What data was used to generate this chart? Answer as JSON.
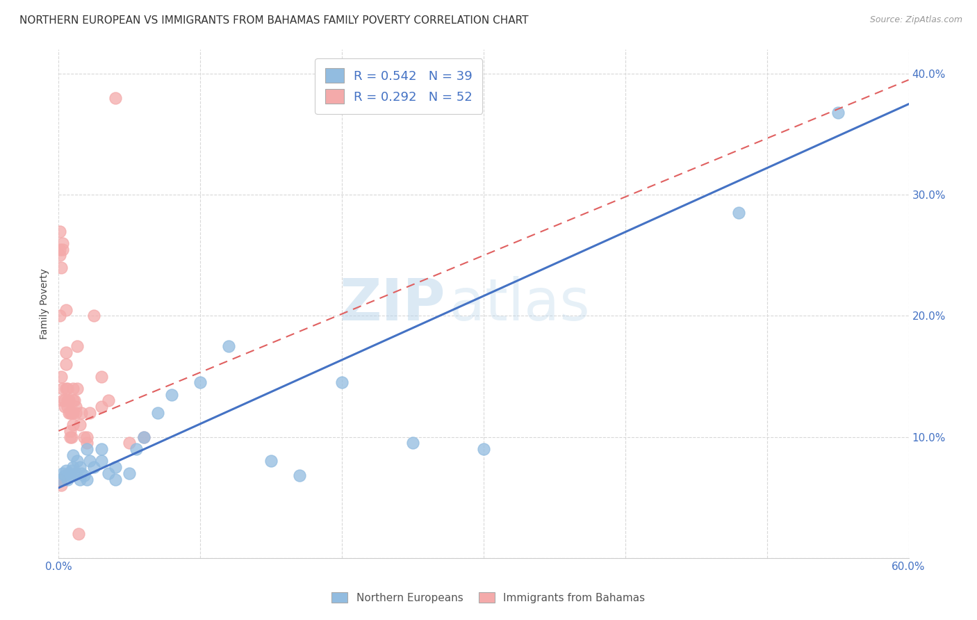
{
  "title": "NORTHERN EUROPEAN VS IMMIGRANTS FROM BAHAMAS FAMILY POVERTY CORRELATION CHART",
  "source": "Source: ZipAtlas.com",
  "ylabel": "Family Poverty",
  "xlim": [
    0.0,
    0.6
  ],
  "ylim": [
    0.0,
    0.42
  ],
  "x_ticks": [
    0.0,
    0.1,
    0.2,
    0.3,
    0.4,
    0.5,
    0.6
  ],
  "y_ticks": [
    0.0,
    0.1,
    0.2,
    0.3,
    0.4
  ],
  "blue_color": "#92bce0",
  "pink_color": "#f4aaaa",
  "blue_line_color": "#4472c4",
  "pink_line_color": "#e06060",
  "watermark_zip": "ZIP",
  "watermark_atlas": "atlas",
  "legend_blue_label": "R = 0.542   N = 39",
  "legend_pink_label": "R = 0.292   N = 52",
  "blue_scatter_x": [
    0.002,
    0.003,
    0.004,
    0.005,
    0.006,
    0.007,
    0.008,
    0.009,
    0.01,
    0.01,
    0.012,
    0.013,
    0.015,
    0.015,
    0.016,
    0.018,
    0.02,
    0.02,
    0.022,
    0.025,
    0.03,
    0.03,
    0.035,
    0.04,
    0.04,
    0.05,
    0.055,
    0.06,
    0.07,
    0.08,
    0.1,
    0.12,
    0.15,
    0.17,
    0.2,
    0.25,
    0.3,
    0.48,
    0.55
  ],
  "blue_scatter_y": [
    0.065,
    0.07,
    0.068,
    0.072,
    0.065,
    0.07,
    0.068,
    0.072,
    0.075,
    0.085,
    0.07,
    0.08,
    0.065,
    0.075,
    0.07,
    0.068,
    0.065,
    0.09,
    0.08,
    0.075,
    0.08,
    0.09,
    0.07,
    0.065,
    0.075,
    0.07,
    0.09,
    0.1,
    0.12,
    0.135,
    0.145,
    0.175,
    0.08,
    0.068,
    0.145,
    0.095,
    0.09,
    0.285,
    0.368
  ],
  "pink_scatter_x": [
    0.001,
    0.001,
    0.001,
    0.002,
    0.002,
    0.002,
    0.003,
    0.003,
    0.003,
    0.003,
    0.004,
    0.004,
    0.005,
    0.005,
    0.005,
    0.005,
    0.006,
    0.006,
    0.006,
    0.007,
    0.007,
    0.007,
    0.008,
    0.008,
    0.008,
    0.009,
    0.009,
    0.01,
    0.01,
    0.01,
    0.01,
    0.011,
    0.012,
    0.012,
    0.013,
    0.013,
    0.014,
    0.015,
    0.016,
    0.018,
    0.02,
    0.02,
    0.022,
    0.025,
    0.03,
    0.03,
    0.035,
    0.04,
    0.06,
    0.001,
    0.05,
    0.001
  ],
  "pink_scatter_y": [
    0.27,
    0.255,
    0.25,
    0.24,
    0.15,
    0.06,
    0.26,
    0.255,
    0.14,
    0.13,
    0.13,
    0.125,
    0.205,
    0.17,
    0.16,
    0.14,
    0.14,
    0.13,
    0.125,
    0.13,
    0.13,
    0.12,
    0.1,
    0.105,
    0.12,
    0.1,
    0.12,
    0.11,
    0.12,
    0.13,
    0.14,
    0.13,
    0.125,
    0.12,
    0.175,
    0.14,
    0.02,
    0.11,
    0.12,
    0.1,
    0.095,
    0.1,
    0.12,
    0.2,
    0.125,
    0.15,
    0.13,
    0.38,
    0.1,
    0.2,
    0.095,
    0.065
  ],
  "blue_trend_x": [
    0.0,
    0.6
  ],
  "blue_trend_y": [
    0.058,
    0.375
  ],
  "pink_trend_x": [
    0.0,
    0.6
  ],
  "pink_trend_y": [
    0.105,
    0.395
  ],
  "grid_color": "#d8d8d8",
  "background_color": "#ffffff",
  "title_fontsize": 11,
  "axis_label_fontsize": 10,
  "tick_fontsize": 11,
  "legend_fontsize": 13
}
